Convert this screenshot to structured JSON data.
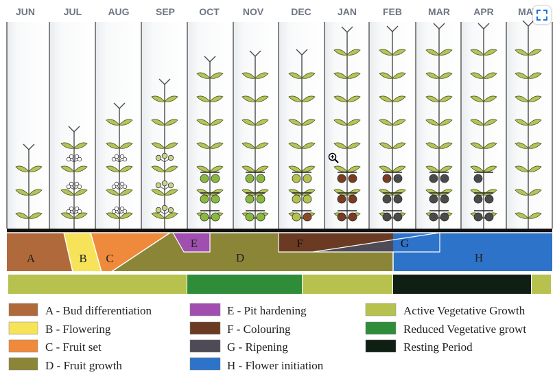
{
  "months": [
    "JUN",
    "JUL",
    "AUG",
    "SEP",
    "OCT",
    "NOV",
    "DEC",
    "JAN",
    "FEB",
    "MAR",
    "APR",
    "MAY"
  ],
  "phases": [
    {
      "letter": "A",
      "color": "#b0693a"
    },
    {
      "letter": "B",
      "color": "#f6e35a"
    },
    {
      "letter": "C",
      "color": "#ef8a3c"
    },
    {
      "letter": "D",
      "color": "#8b8637"
    },
    {
      "letter": "E",
      "color": "#a04fb0"
    },
    {
      "letter": "F",
      "color": "#6a3b22"
    },
    {
      "letter": "G",
      "color": "#4e4b57"
    },
    {
      "letter": "H",
      "color": "#2d73c9"
    }
  ],
  "vegetative_colors": {
    "active": "#b6c24d",
    "reduced": "#2f8d3a",
    "resting": "#0f1f14"
  },
  "legend": {
    "col1": [
      {
        "label": "A - Bud differentiation",
        "color": "#b0693a"
      },
      {
        "label": "B - Flowering",
        "color": "#f6e35a"
      },
      {
        "label": "C - Fruit set",
        "color": "#ef8a3c"
      },
      {
        "label": "D - Fruit growth",
        "color": "#8b8637"
      }
    ],
    "col2": [
      {
        "label": "E - Pit hardening",
        "color": "#a04fb0"
      },
      {
        "label": "F - Colouring",
        "color": "#6a3b22"
      },
      {
        "label": "G - Ripening",
        "color": "#4e4b57"
      },
      {
        "label": "H - Flower initiation",
        "color": "#2d73c9"
      }
    ],
    "col3": [
      {
        "label": "Active Vegetative Growth",
        "color": "#b6c24d"
      },
      {
        "label": "Reduced Vegetative growt",
        "color": "#2f8d3a"
      },
      {
        "label": "Resting Period",
        "color": "#0f1f14"
      }
    ]
  },
  "ui": {
    "expand_icon": "expand-icon",
    "cursor_icon": "zoom-in-cursor-icon"
  }
}
